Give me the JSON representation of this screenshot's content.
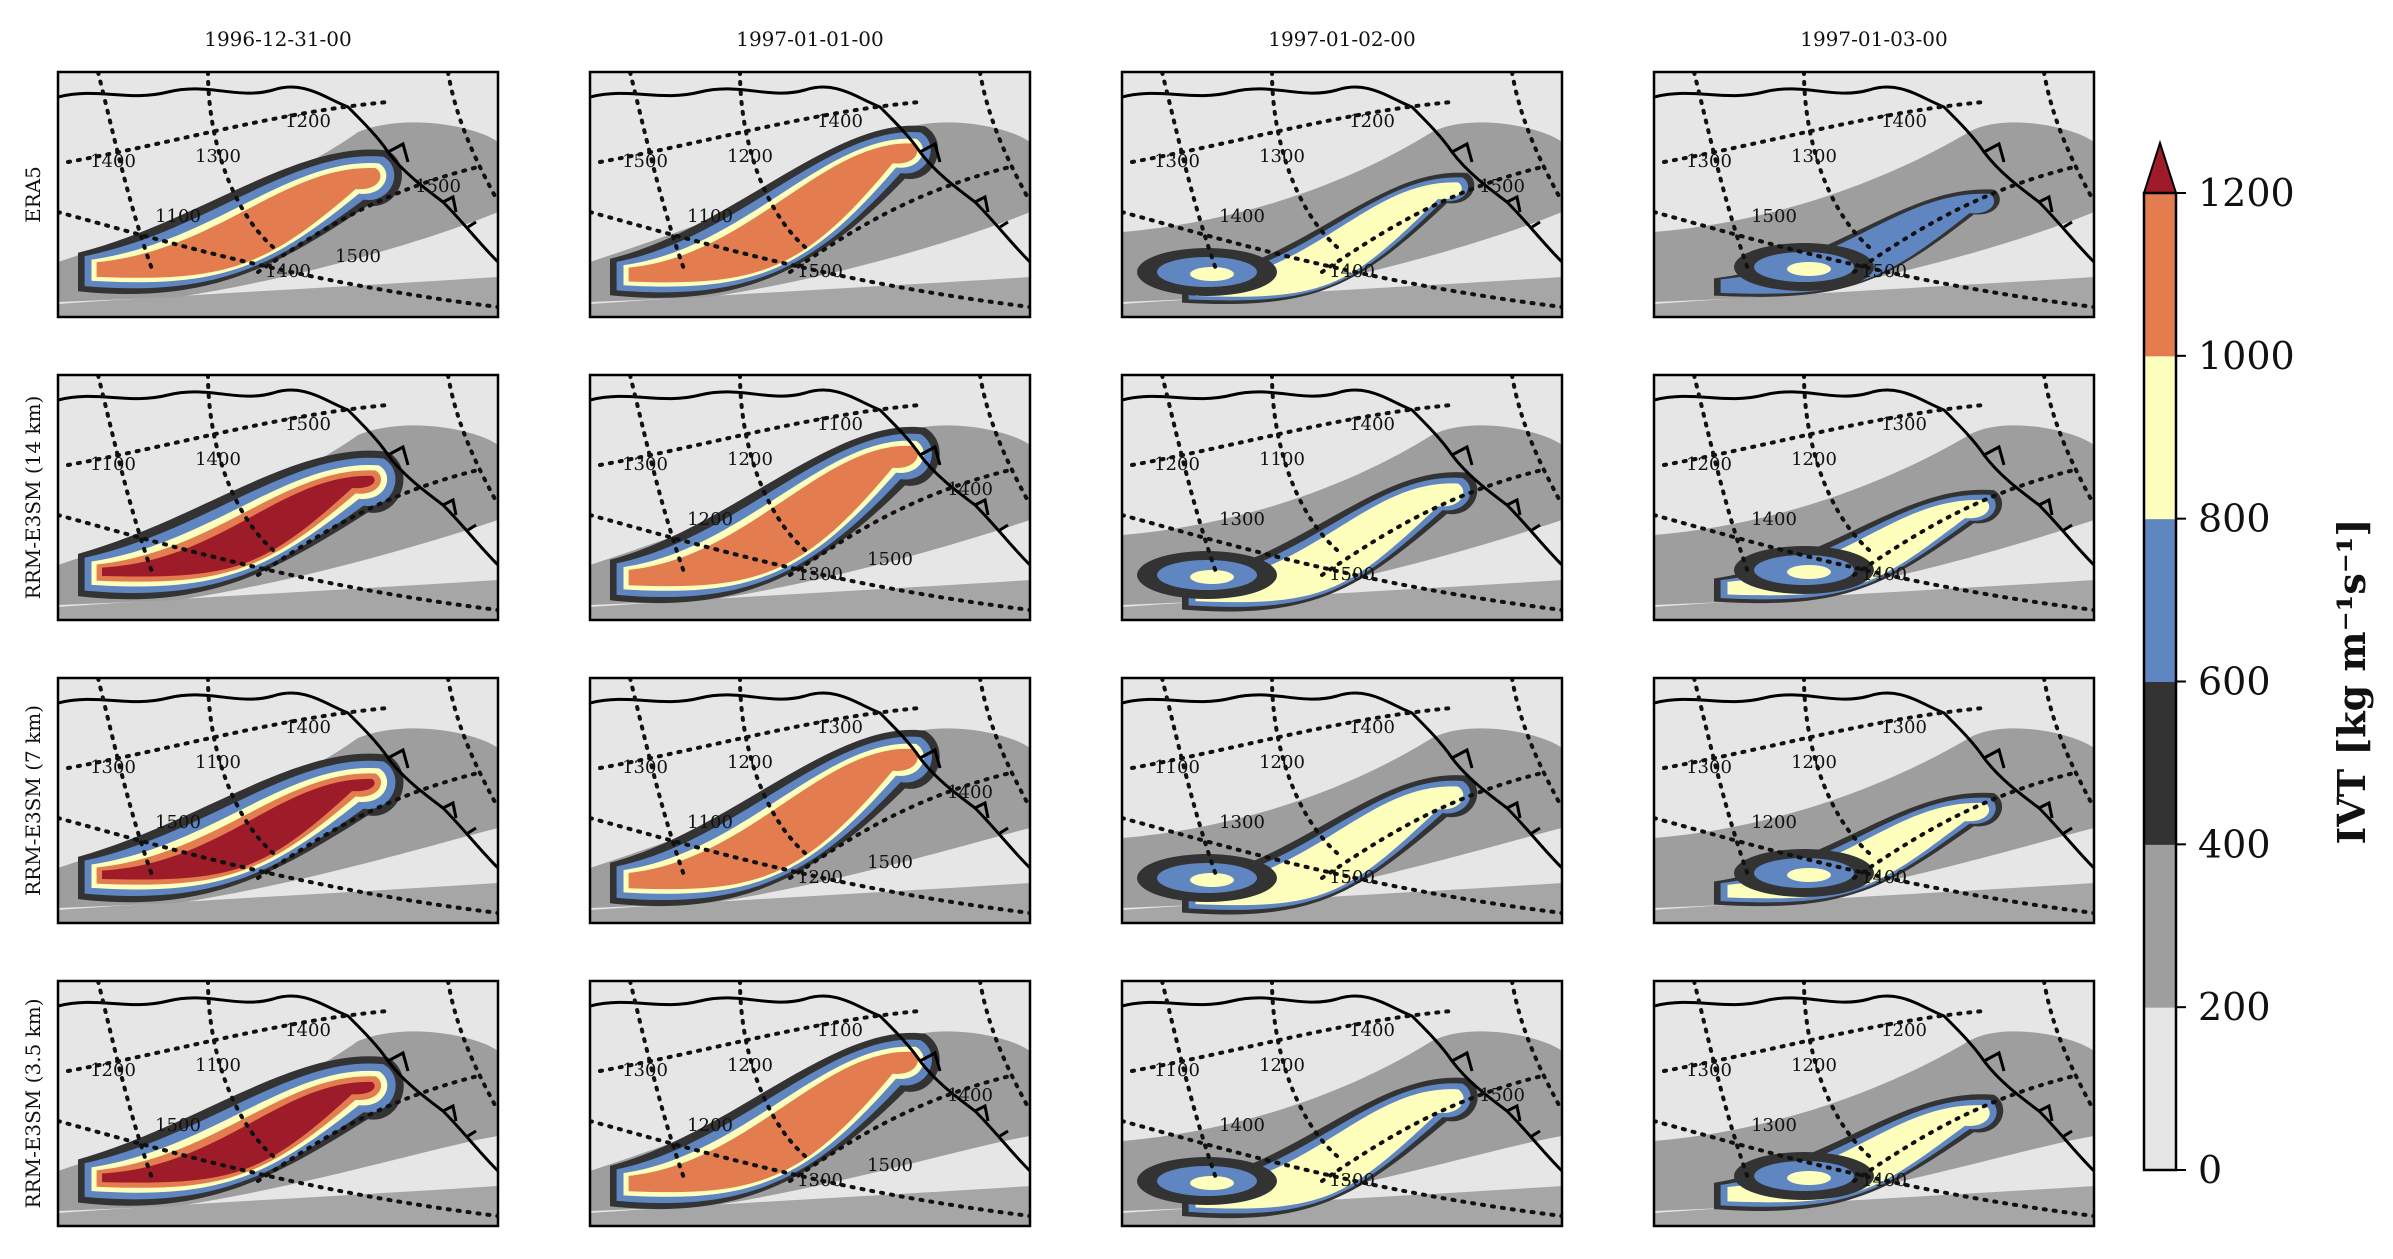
{
  "chart_data": {
    "type": "heatmap",
    "title": "",
    "columns": [
      "1996-12-31-00",
      "1997-01-01-00",
      "1997-01-02-00",
      "1997-01-03-00"
    ],
    "rows": [
      "ERA5",
      "RRM-E3SM (14 km)",
      "RRM-E3SM (7 km)",
      "RRM-E3SM (3.5 km)"
    ],
    "colorbar": {
      "label": "IVT [kg m⁻¹s⁻¹]",
      "ticks": [
        "0",
        "200",
        "400",
        "600",
        "800",
        "1000",
        "1200"
      ],
      "levels": [
        0,
        200,
        400,
        600,
        800,
        1000,
        1200
      ],
      "extend": "max",
      "colors": [
        "#e6e6e6",
        "#9e9e9e",
        "#333333",
        "#5f86c0",
        "#ffffbd",
        "#e37c4e",
        "#9e1b2a"
      ]
    },
    "panels": [
      [
        {
          "intensity": 1.0,
          "contour_labels": [
            "1400",
            "1300",
            "1200",
            "1100",
            "1400",
            "1500",
            "1500"
          ]
        },
        {
          "intensity": 0.95,
          "contour_labels": [
            "1500",
            "1200",
            "1400",
            "1100",
            "1500"
          ]
        },
        {
          "intensity": 0.55,
          "contour_labels": [
            "1300",
            "1300",
            "1200",
            "1400",
            "1400",
            "1500"
          ]
        },
        {
          "intensity": 0.45,
          "contour_labels": [
            "1300",
            "1300",
            "1400",
            "1500",
            "1500"
          ]
        }
      ],
      [
        {
          "intensity": 1.1,
          "contour_labels": [
            "1100",
            "1400",
            "1500"
          ]
        },
        {
          "intensity": 1.05,
          "contour_labels": [
            "1300",
            "1200",
            "1100",
            "1200",
            "1300",
            "1400",
            "1500"
          ]
        },
        {
          "intensity": 0.75,
          "contour_labels": [
            "1200",
            "1100",
            "1400",
            "1300",
            "1500"
          ]
        },
        {
          "intensity": 0.6,
          "contour_labels": [
            "1200",
            "1200",
            "1300",
            "1400",
            "1400"
          ]
        }
      ],
      [
        {
          "intensity": 1.1,
          "contour_labels": [
            "1300",
            "1100",
            "1400",
            "1500"
          ]
        },
        {
          "intensity": 1.05,
          "contour_labels": [
            "1300",
            "1200",
            "1300",
            "1100",
            "1200",
            "1400",
            "1500"
          ]
        },
        {
          "intensity": 0.75,
          "contour_labels": [
            "1100",
            "1200",
            "1400",
            "1300",
            "1500"
          ]
        },
        {
          "intensity": 0.6,
          "contour_labels": [
            "1300",
            "1200",
            "1300",
            "1200",
            "1400"
          ]
        }
      ],
      [
        {
          "intensity": 1.12,
          "contour_labels": [
            "1200",
            "1100",
            "1400",
            "1500"
          ]
        },
        {
          "intensity": 1.05,
          "contour_labels": [
            "1300",
            "1200",
            "1100",
            "1200",
            "1300",
            "1400",
            "1500"
          ]
        },
        {
          "intensity": 0.78,
          "contour_labels": [
            "1100",
            "1200",
            "1400",
            "1400",
            "1300",
            "1500"
          ]
        },
        {
          "intensity": 0.68,
          "contour_labels": [
            "1300",
            "1200",
            "1200",
            "1300",
            "1400"
          ]
        }
      ]
    ]
  }
}
